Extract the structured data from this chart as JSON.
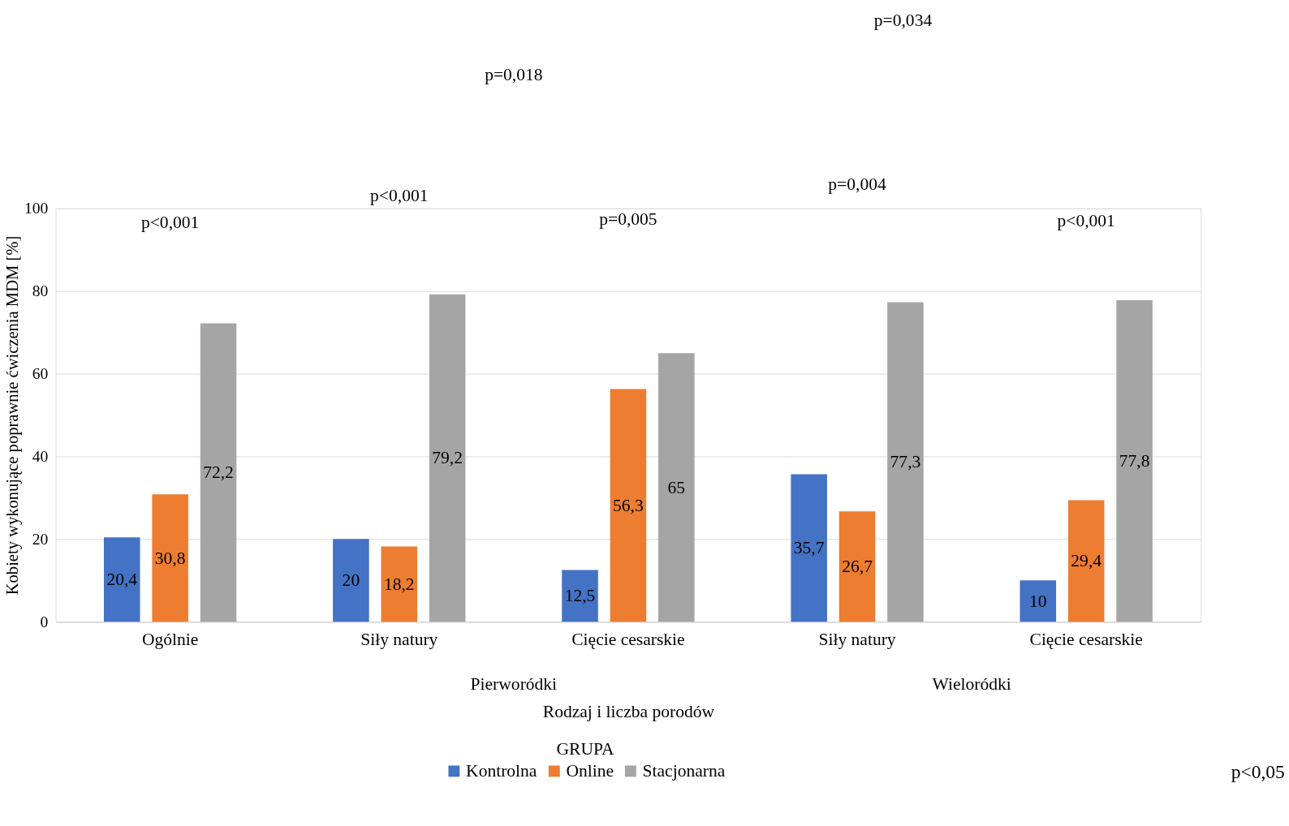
{
  "chart_data": {
    "type": "bar",
    "xlabel": "Rodzaj i liczba porodów",
    "ylabel": "Kobiety wykonujące poprawnie ćwiczenia MDM [%]",
    "legend_title": "GRUPA",
    "categories": [
      "Ogólnie",
      "Siły natury",
      "Cięcie cesarskie",
      "Siły natury",
      "Cięcie cesarskie"
    ],
    "series": [
      {
        "name": "Kontrolna",
        "color": "#4472c4",
        "values": [
          20.4,
          20,
          12.5,
          35.7,
          10
        ],
        "value_labels": [
          "20,4",
          "20",
          "12,5",
          "35,7",
          "10"
        ]
      },
      {
        "name": "Online",
        "color": "#ed7d31",
        "values": [
          30.8,
          18.2,
          56.3,
          26.7,
          29.4
        ],
        "value_labels": [
          "30,8",
          "18,2",
          "56,3",
          "26,7",
          "29,4"
        ]
      },
      {
        "name": "Stacjonarna",
        "color": "#a5a5a5",
        "values": [
          72.2,
          79.2,
          65,
          77.3,
          77.8
        ],
        "value_labels": [
          "72,2",
          "79,2",
          "65",
          "77,3",
          "77,8"
        ]
      }
    ],
    "ylim": [
      0,
      100
    ],
    "yticks": [
      0,
      20,
      40,
      60,
      80,
      100
    ],
    "grid": "y",
    "legend": "bottom",
    "annotations": [
      "p<0,001",
      "p<0,001",
      "p=0,005",
      "p=0,018",
      "p=0,034",
      "p=0,004",
      "p<0,001",
      "Pierworódki",
      "Wieloródki",
      "p<0,05"
    ]
  }
}
